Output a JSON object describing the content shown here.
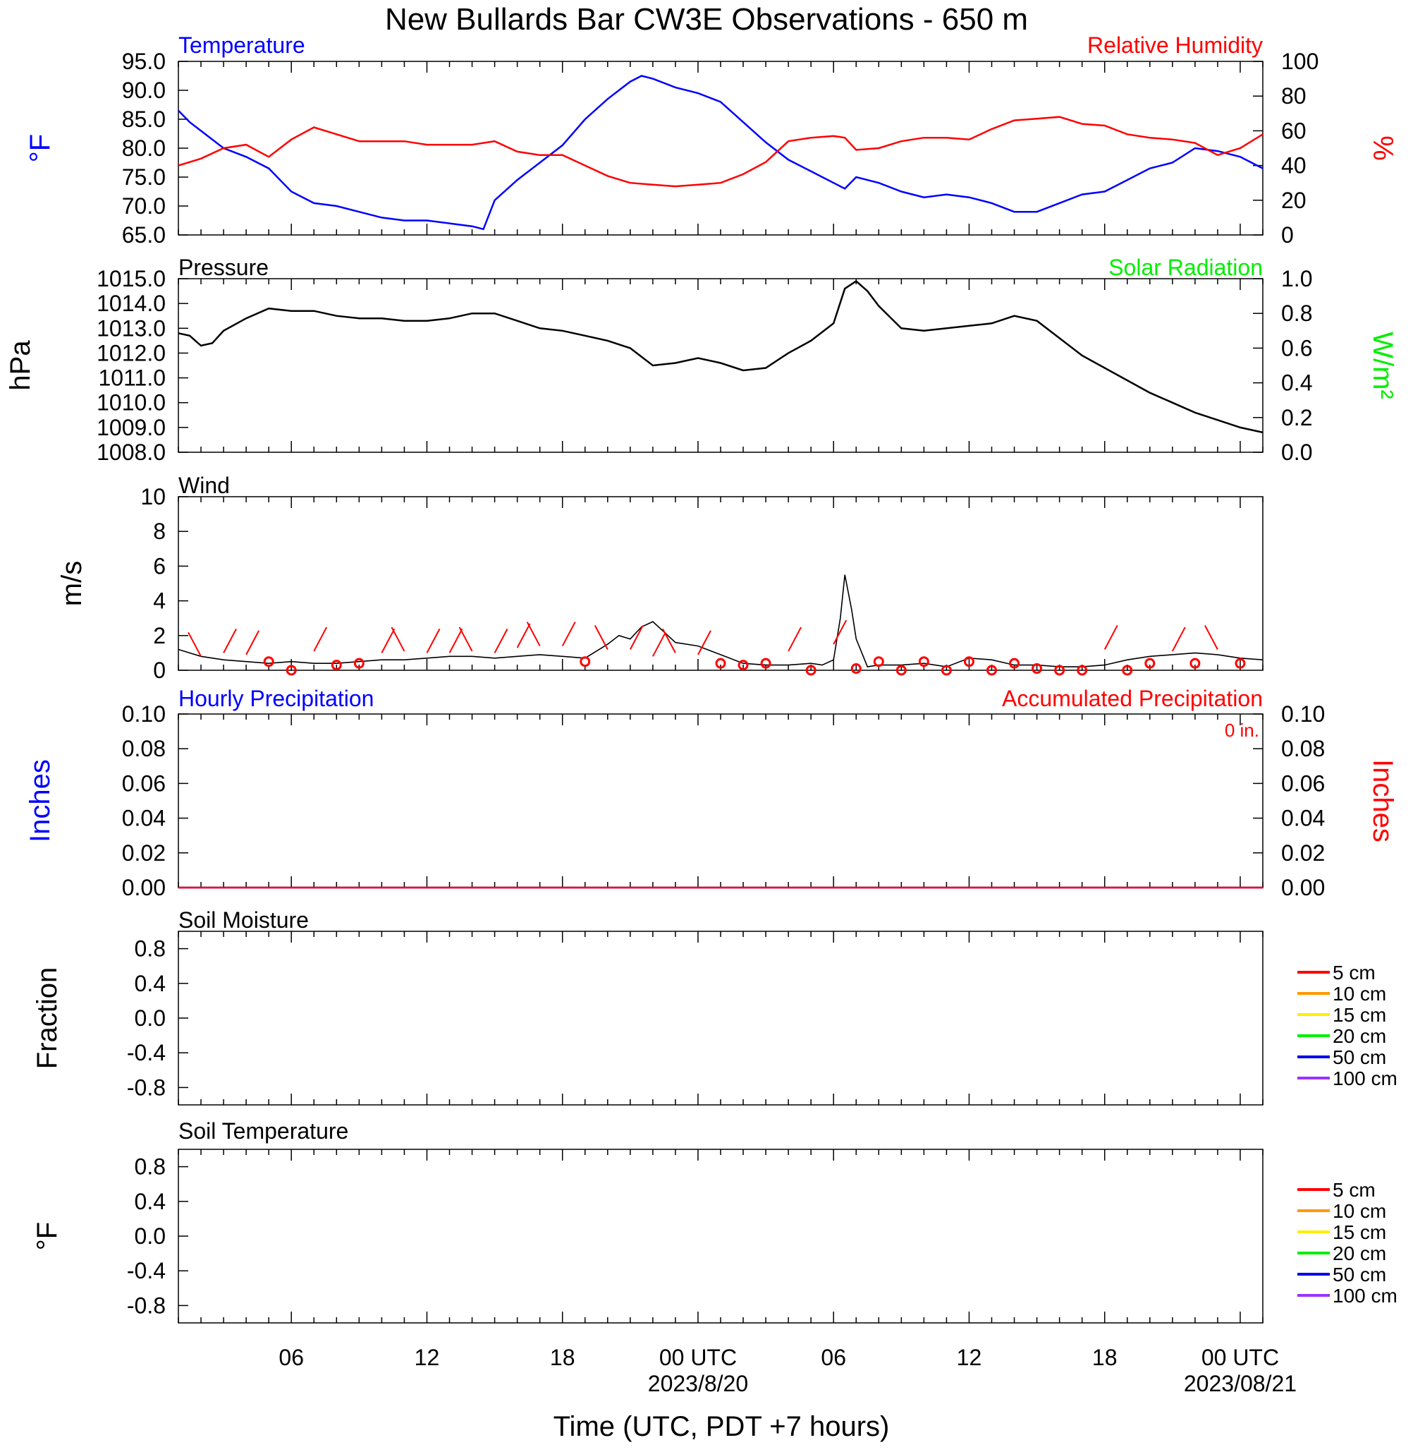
{
  "title": "New Bullards Bar CW3E Observations - 650 m",
  "x_axis": {
    "label": "Time (UTC, PDT +7 hours)",
    "ticks": [
      {
        "hour": 6,
        "label": "06",
        "date": ""
      },
      {
        "hour": 12,
        "label": "12",
        "date": ""
      },
      {
        "hour": 18,
        "label": "18",
        "date": ""
      },
      {
        "hour": 24,
        "label": "00 UTC",
        "date": "2023/8/20"
      },
      {
        "hour": 30,
        "label": "06",
        "date": ""
      },
      {
        "hour": 36,
        "label": "12",
        "date": ""
      },
      {
        "hour": 42,
        "label": "18",
        "date": ""
      },
      {
        "hour": 48,
        "label": "00 UTC",
        "date": "2023/08/21"
      }
    ],
    "range_hours": [
      1,
      49
    ]
  },
  "colors": {
    "temperature": "#0000ff",
    "humidity": "#ff0000",
    "pressure": "#000000",
    "solar": "#00ee00",
    "wind": "#000000",
    "barb": "#ff0000",
    "precip_hourly": "#0000ff",
    "precip_accum": "#ff0000"
  },
  "panels": {
    "temp_rh": {
      "left_title": "Temperature",
      "right_title": "Relative Humidity",
      "left_unit": "°F",
      "right_unit": "%",
      "left_ticks": [
        "65.0",
        "70.0",
        "75.0",
        "80.0",
        "85.0",
        "90.0",
        "95.0"
      ],
      "right_ticks": [
        "0",
        "20",
        "40",
        "60",
        "80",
        "100"
      ]
    },
    "pressure": {
      "left_title": "Pressure",
      "right_title": "Solar Radiation",
      "left_unit": "hPa",
      "right_unit": "W/m²",
      "left_ticks": [
        "1008.0",
        "1009.0",
        "1010.0",
        "1011.0",
        "1012.0",
        "1013.0",
        "1014.0",
        "1015.0"
      ],
      "right_ticks": [
        "0.0",
        "0.2",
        "0.4",
        "0.6",
        "0.8",
        "1.0"
      ]
    },
    "wind": {
      "left_title": "Wind",
      "left_unit": "m/s",
      "left_ticks": [
        "0",
        "2",
        "4",
        "6",
        "8",
        "10"
      ]
    },
    "precip": {
      "left_title": "Hourly Precipitation",
      "right_title": "Accumulated Precipitation",
      "accum_note": "0 in.",
      "left_unit": "Inches",
      "right_unit": "Inches",
      "left_ticks": [
        "0.00",
        "0.02",
        "0.04",
        "0.06",
        "0.08",
        "0.10"
      ],
      "right_ticks": [
        "0.00",
        "0.02",
        "0.04",
        "0.06",
        "0.08",
        "0.10"
      ]
    },
    "soil_moisture": {
      "left_title": "Soil Moisture",
      "left_unit": "Fraction",
      "left_ticks": [
        "-0.8",
        "-0.4",
        "0.0",
        "0.4",
        "0.8"
      ],
      "legend": [
        {
          "label": "5 cm",
          "color": "#ff0000"
        },
        {
          "label": "10 cm",
          "color": "#ff9900"
        },
        {
          "label": "15 cm",
          "color": "#ffee00"
        },
        {
          "label": "20 cm",
          "color": "#00ee00"
        },
        {
          "label": "50 cm",
          "color": "#0000ee"
        },
        {
          "label": "100 cm",
          "color": "#9933ff"
        }
      ]
    },
    "soil_temp": {
      "left_title": "Soil Temperature",
      "left_unit": "°F",
      "left_ticks": [
        "-0.8",
        "-0.4",
        "0.0",
        "0.4",
        "0.8"
      ],
      "legend": [
        {
          "label": "5 cm",
          "color": "#ff0000"
        },
        {
          "label": "10 cm",
          "color": "#ff9900"
        },
        {
          "label": "15 cm",
          "color": "#ffee00"
        },
        {
          "label": "20 cm",
          "color": "#00ee00"
        },
        {
          "label": "50 cm",
          "color": "#0000ee"
        },
        {
          "label": "100 cm",
          "color": "#9933ff"
        }
      ]
    }
  },
  "chart_data": [
    {
      "type": "line",
      "title": "Temperature / Relative Humidity",
      "x_units": "hours UTC since 2023/8/19 00 UTC",
      "ylim_left": [
        65,
        95
      ],
      "ylim_right": [
        0,
        100
      ],
      "series": [
        {
          "name": "Temperature",
          "axis": "left",
          "color": "#0000ff",
          "x": [
            1,
            1.5,
            2,
            3,
            4,
            5,
            6,
            7,
            8,
            9,
            10,
            11,
            12,
            13,
            14,
            14.5,
            15,
            16,
            17,
            18,
            19,
            20,
            21,
            21.5,
            22,
            23,
            24,
            25,
            26,
            27,
            28,
            29,
            30,
            30.5,
            31,
            32,
            33,
            34,
            35,
            36,
            37,
            38,
            39,
            40,
            41,
            42,
            43,
            44,
            45,
            46,
            47,
            48,
            49
          ],
          "values": [
            86.5,
            84.5,
            83.0,
            80.0,
            78.5,
            76.5,
            72.5,
            70.5,
            70.0,
            69.0,
            68.0,
            67.5,
            67.5,
            67.0,
            66.5,
            66.0,
            71.0,
            74.5,
            77.5,
            80.5,
            85.0,
            88.5,
            91.5,
            92.5,
            92.0,
            90.5,
            89.5,
            88.0,
            84.5,
            81.0,
            78.0,
            76.0,
            74.0,
            73.0,
            75.0,
            74.0,
            72.5,
            71.5,
            72.0,
            71.5,
            70.5,
            69.0,
            69.0,
            70.5,
            72.0,
            72.5,
            74.5,
            76.5,
            77.5,
            80.0,
            79.5,
            78.5,
            76.5
          ]
        },
        {
          "name": "Relative Humidity",
          "axis": "right",
          "color": "#ff0000",
          "x": [
            1,
            2,
            3,
            4,
            5,
            6,
            7,
            8,
            9,
            10,
            11,
            12,
            13,
            14,
            15,
            16,
            17,
            18,
            19,
            20,
            21,
            22,
            23,
            24,
            25,
            26,
            27,
            28,
            29,
            30,
            30.5,
            31,
            32,
            33,
            34,
            35,
            36,
            37,
            38,
            39,
            40,
            41,
            42,
            43,
            44,
            45,
            46,
            47,
            48,
            49
          ],
          "values": [
            40,
            44,
            50,
            52,
            45,
            55,
            62,
            58,
            54,
            54,
            54,
            52,
            52,
            52,
            54,
            48,
            46,
            46,
            40,
            34,
            30,
            29,
            28,
            29,
            30,
            35,
            42,
            54,
            56,
            57,
            56,
            49,
            50,
            54,
            56,
            56,
            55,
            61,
            66,
            67,
            68,
            64,
            63,
            58,
            56,
            55,
            53,
            46,
            50,
            58
          ]
        }
      ]
    },
    {
      "type": "line",
      "title": "Pressure",
      "x_units": "hours UTC since 2023/8/19 00 UTC",
      "ylim": [
        1008,
        1015
      ],
      "series": [
        {
          "name": "Pressure",
          "color": "#000000",
          "x": [
            1,
            1.5,
            2,
            2.5,
            3,
            4,
            5,
            6,
            7,
            8,
            9,
            10,
            11,
            12,
            13,
            14,
            15,
            16,
            17,
            18,
            19,
            20,
            21,
            22,
            23,
            24,
            25,
            26,
            27,
            28,
            29,
            30,
            30.5,
            31,
            31.5,
            32,
            33,
            34,
            35,
            36,
            37,
            38,
            39,
            40,
            41,
            42,
            43,
            44,
            45,
            46,
            47,
            48,
            48.5,
            49
          ],
          "values": [
            1012.8,
            1012.7,
            1012.3,
            1012.4,
            1012.9,
            1013.4,
            1013.8,
            1013.7,
            1013.7,
            1013.5,
            1013.4,
            1013.4,
            1013.3,
            1013.3,
            1013.4,
            1013.6,
            1013.6,
            1013.3,
            1013.0,
            1012.9,
            1012.7,
            1012.5,
            1012.2,
            1011.5,
            1011.6,
            1011.8,
            1011.6,
            1011.3,
            1011.4,
            1012.0,
            1012.5,
            1013.2,
            1014.6,
            1014.9,
            1014.5,
            1013.9,
            1013.0,
            1012.9,
            1013.0,
            1013.1,
            1013.2,
            1013.5,
            1013.3,
            1012.6,
            1011.9,
            1011.4,
            1010.9,
            1010.4,
            1010.0,
            1009.6,
            1009.3,
            1009.0,
            1008.9,
            1008.8
          ]
        }
      ]
    },
    {
      "type": "line",
      "title": "Wind",
      "x_units": "hours UTC since 2023/8/19 00 UTC",
      "ylim": [
        0,
        10
      ],
      "series": [
        {
          "name": "Wind",
          "color": "#000000",
          "x": [
            1,
            2,
            3,
            4,
            5,
            6,
            7,
            8,
            9,
            10,
            11,
            12,
            13,
            14,
            15,
            16,
            17,
            18,
            19,
            20,
            20.5,
            21,
            21.5,
            22,
            23,
            24,
            25,
            26,
            27,
            28,
            29,
            29.5,
            30,
            30.3,
            30.5,
            30.8,
            31,
            31.5,
            32,
            33,
            34,
            35,
            36,
            37,
            38,
            39,
            40,
            41,
            42,
            43,
            44,
            45,
            46,
            47,
            48,
            49
          ],
          "values": [
            1.2,
            0.8,
            0.6,
            0.5,
            0.4,
            0.5,
            0.4,
            0.4,
            0.5,
            0.6,
            0.6,
            0.7,
            0.8,
            0.8,
            0.7,
            0.8,
            0.9,
            0.8,
            0.7,
            1.5,
            2.0,
            1.8,
            2.5,
            2.8,
            1.6,
            1.4,
            0.9,
            0.4,
            0.3,
            0.3,
            0.4,
            0.3,
            0.6,
            3.0,
            5.5,
            3.5,
            1.8,
            0.2,
            0.3,
            0.3,
            0.4,
            0.2,
            0.7,
            0.6,
            0.3,
            0.3,
            0.2,
            0.2,
            0.3,
            0.6,
            0.8,
            0.9,
            1.0,
            0.9,
            0.7,
            0.6
          ]
        },
        {
          "name": "Wind barbs",
          "color": "#ff0000",
          "x": [
            2,
            3,
            4,
            5,
            6,
            7,
            8,
            9,
            10,
            11,
            12,
            13,
            14,
            15,
            16,
            17,
            18,
            19,
            20,
            21,
            22,
            23,
            24,
            25,
            26,
            27,
            28,
            29,
            30,
            31,
            32,
            33,
            34,
            35,
            36,
            37,
            38,
            39,
            40,
            41,
            42,
            43,
            44,
            45,
            46,
            47,
            48
          ],
          "values": [
            0.8,
            1.0,
            0.9,
            0.5,
            0.0,
            1.1,
            0.3,
            0.4,
            1.0,
            1.1,
            1.0,
            1.0,
            1.1,
            1.0,
            1.3,
            1.4,
            1.4,
            0.5,
            1.2,
            1.2,
            0.8,
            1.0,
            0.9,
            0.4,
            0.3,
            0.4,
            1.1,
            0.0,
            1.5,
            0.1,
            0.5,
            0.0,
            0.5,
            0.0,
            0.5,
            0.0,
            0.4,
            0.1,
            0.0,
            0.0,
            1.2,
            0.0,
            0.4,
            1.1,
            0.4,
            1.2,
            0.4
          ]
        }
      ]
    },
    {
      "type": "line",
      "title": "Hourly Precipitation / Accumulated Precipitation",
      "x_units": "hours UTC since 2023/8/19 00 UTC",
      "ylim": [
        0,
        0.1
      ],
      "series": [
        {
          "name": "Hourly Precipitation",
          "color": "#0000ff",
          "x": [
            1,
            49
          ],
          "values": [
            0,
            0
          ]
        },
        {
          "name": "Accumulated Precipitation",
          "color": "#ff0000",
          "x": [
            1,
            49
          ],
          "values": [
            0,
            0
          ]
        }
      ]
    }
  ]
}
